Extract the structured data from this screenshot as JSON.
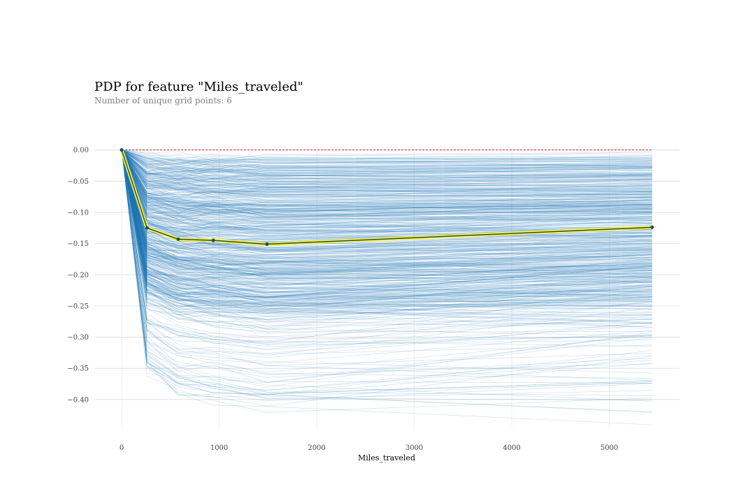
{
  "chart_data": {
    "type": "line",
    "title": "PDP for feature \"Miles_traveled\"",
    "subtitle": "Number of unique grid points: 6",
    "xlabel": "Miles_traveled",
    "ylabel": "",
    "xlim": [
      -280,
      5720
    ],
    "ylim": [
      -0.445,
      0.003
    ],
    "x_ticks": [
      0,
      1000,
      2000,
      3000,
      4000,
      5000
    ],
    "y_ticks": [
      0.0,
      -0.05,
      -0.1,
      -0.15,
      -0.2,
      -0.25,
      -0.3,
      -0.35,
      -0.4
    ],
    "grid": true,
    "grid_points": [
      0,
      260,
      580,
      940,
      1490,
      5440
    ],
    "pdp_line": {
      "x": [
        0,
        260,
        580,
        940,
        1490,
        5440
      ],
      "y": [
        0.0,
        -0.125,
        -0.143,
        -0.145,
        -0.151,
        -0.124
      ]
    },
    "ice_lines": {
      "x": [
        0,
        260,
        580,
        940,
        1490,
        5440
      ],
      "count": 700,
      "dense_range": [
        -0.005,
        -0.27
      ],
      "sparse_min": -0.415
    },
    "reference_line": {
      "y": 0.0
    },
    "colors": {
      "ice": "#1f77b4",
      "pdp_outer": "#fef038",
      "pdp_inner": "#1A4E5D",
      "reference": "#de1c24",
      "grid": "#d9d9d9"
    }
  }
}
